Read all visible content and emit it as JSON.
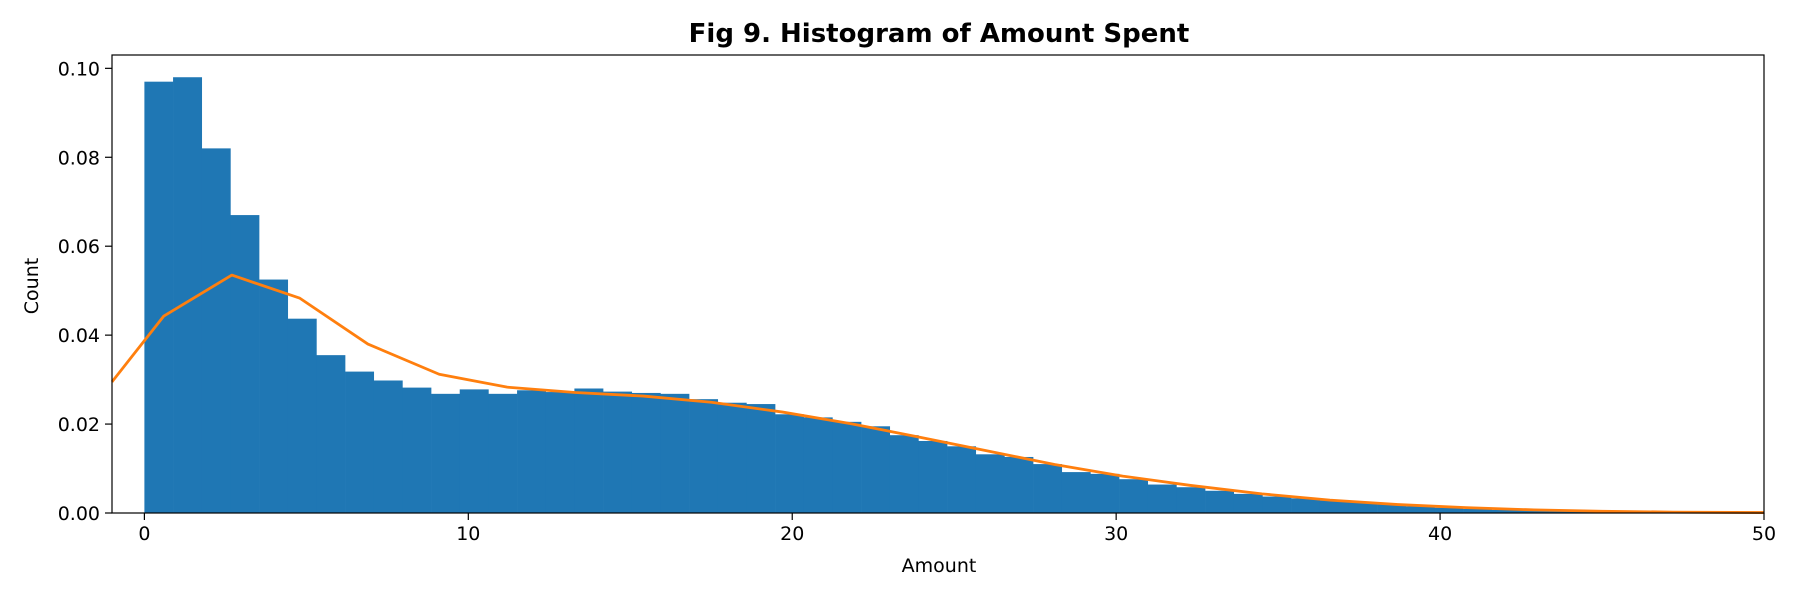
{
  "chart_data": {
    "type": "bar",
    "title": "Fig 9. Histogram of Amount Spent",
    "xlabel": "Amount",
    "ylabel": "Count",
    "xlim": [
      -1,
      50
    ],
    "ylim": [
      0,
      0.103
    ],
    "x_ticks": [
      0,
      10,
      20,
      30,
      40,
      50
    ],
    "x_tick_labels": [
      "0",
      "10",
      "20",
      "30",
      "40",
      "50"
    ],
    "y_ticks": [
      0,
      0.02,
      0.04,
      0.06,
      0.08,
      0.1
    ],
    "y_tick_labels": [
      "0.00",
      "0.02",
      "0.04",
      "0.06",
      "0.08",
      "0.10"
    ],
    "grid": false,
    "series": [
      {
        "type": "histogram",
        "color": "#1f77b4",
        "bin_edges": [
          0,
          0.885,
          1.77,
          2.655,
          3.54,
          4.425,
          5.31,
          6.195,
          7.08,
          7.965,
          8.85,
          9.735,
          10.62,
          11.505,
          12.39,
          13.275,
          14.16,
          15.045,
          15.93,
          16.815,
          17.7,
          18.585,
          19.47,
          20.355,
          21.24,
          22.125,
          23.01,
          23.895,
          24.78,
          25.665,
          26.55,
          27.435,
          28.32,
          29.205,
          30.09,
          30.975,
          31.86,
          32.745,
          33.63,
          34.515,
          35.4,
          36.285,
          37.17,
          38.055,
          38.94,
          39.825,
          40.71,
          41.595,
          42.48,
          43.365,
          44.25,
          45.135,
          46.02,
          46.905,
          47.79,
          48.675,
          49.56
        ],
        "values": [
          0.097,
          0.098,
          0.082,
          0.067,
          0.0525,
          0.0437,
          0.0355,
          0.0318,
          0.0298,
          0.0282,
          0.0268,
          0.0278,
          0.0268,
          0.0276,
          0.0272,
          0.028,
          0.0273,
          0.027,
          0.0268,
          0.0256,
          0.0248,
          0.0245,
          0.0222,
          0.0215,
          0.0205,
          0.0195,
          0.0175,
          0.0162,
          0.015,
          0.0132,
          0.0126,
          0.011,
          0.0092,
          0.0088,
          0.0076,
          0.0064,
          0.0058,
          0.005,
          0.0043,
          0.0037,
          0.0033,
          0.0028,
          0.0024,
          0.002,
          0.0015,
          0.0012,
          0.0009,
          0.0007,
          0.0006,
          0.0004,
          0.0003,
          0.0002,
          0.0002,
          0.0001,
          0.0001,
          0.0001
        ]
      },
      {
        "type": "line",
        "color": "#ff7f0e",
        "x": [
          -1,
          0.6,
          2.7,
          4.8,
          6.9,
          9.1,
          11.2,
          13.3,
          15.4,
          17.5,
          19.7,
          21.8,
          23.9,
          26.0,
          28.1,
          30.2,
          32.3,
          34.5,
          36.6,
          38.7,
          40.8,
          42.9,
          45.0,
          47.2,
          50
        ],
        "y": [
          0.0295,
          0.0443,
          0.0535,
          0.0483,
          0.038,
          0.0312,
          0.0283,
          0.0271,
          0.0263,
          0.0249,
          0.0227,
          0.0201,
          0.0171,
          0.014,
          0.0109,
          0.0083,
          0.0062,
          0.0043,
          0.0029,
          0.0019,
          0.0012,
          0.0007,
          0.0004,
          0.0002,
          0.0001
        ]
      }
    ]
  }
}
